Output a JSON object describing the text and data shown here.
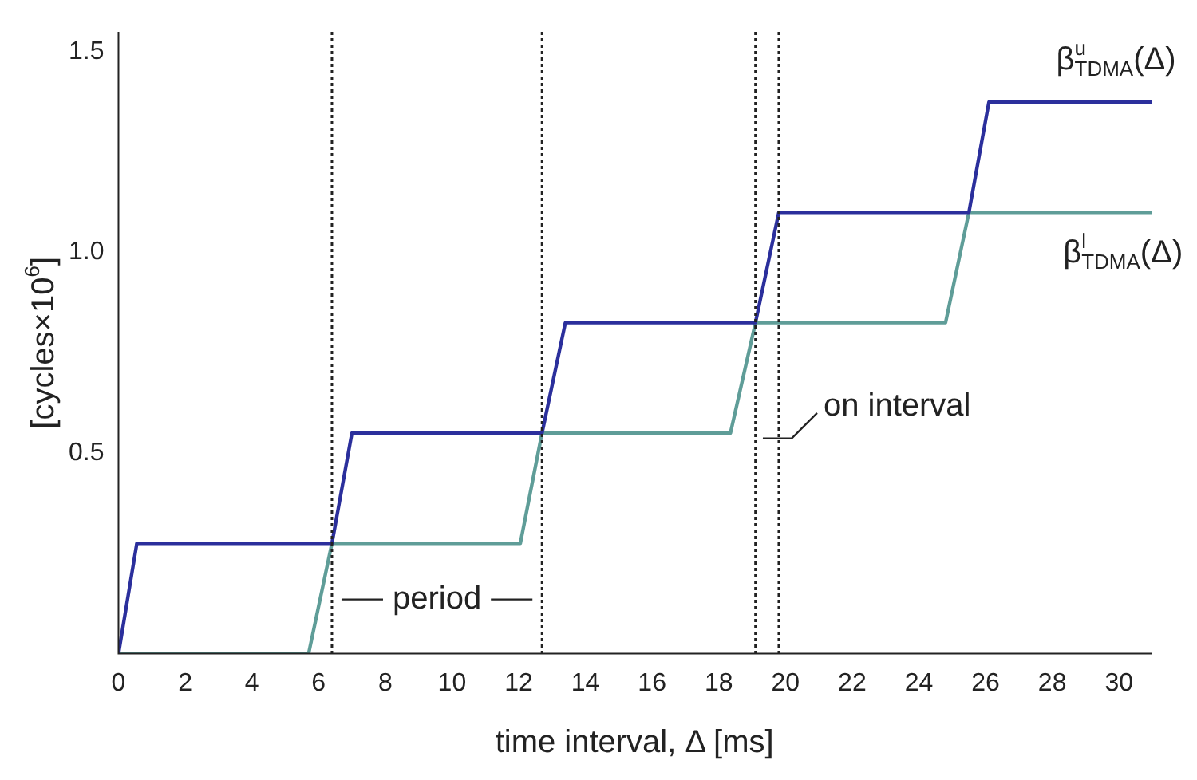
{
  "chart_data": {
    "type": "line",
    "xlabel": "time interval, Δ [ms]",
    "ylabel": "[cycles×10$^{6}$]",
    "xlim": [
      0,
      31
    ],
    "xticks": [
      0,
      2,
      4,
      6,
      8,
      10,
      12,
      14,
      16,
      18,
      20,
      22,
      24,
      26,
      28,
      30
    ],
    "ylim": [
      0,
      1.55
    ],
    "yticks": [
      {
        "value": 0.5,
        "label": "0.5"
      },
      {
        "value": 1,
        "label": "1.0"
      },
      {
        "value": 1.5,
        "label": "1.5"
      }
    ],
    "grid": false,
    "legend": false,
    "marker": "none",
    "line_style": "solid",
    "series": [
      {
        "name": "β$^{u}$$_{TDMA}$(Δ)",
        "color": "#2b2f9c",
        "x": [
          0,
          0.55,
          6.4,
          7.0,
          12.7,
          13.4,
          19.1,
          19.8,
          25.5,
          26.1,
          31
        ],
        "values": [
          0,
          0.275,
          0.275,
          0.55,
          0.55,
          0.825,
          0.825,
          1.1,
          1.1,
          1.375,
          1.375
        ]
      },
      {
        "name": "β$^{l}$$_{TDMA}$(Δ)",
        "color": "#5f9d98",
        "x": [
          0,
          5.7,
          6.4,
          12.05,
          12.7,
          18.35,
          19.1,
          24.8,
          25.5,
          31
        ],
        "values": [
          0,
          0,
          0.275,
          0.275,
          0.55,
          0.55,
          0.825,
          0.825,
          1.1,
          1.1
        ]
      }
    ],
    "ref_lines": [
      {
        "axis": "x",
        "value": 6.4,
        "line_style": "dotted",
        "color": "#222222"
      },
      {
        "axis": "x",
        "value": 12.7,
        "line_style": "dotted",
        "color": "#222222"
      },
      {
        "axis": "x",
        "value": 19.1,
        "line_style": "dotted",
        "color": "#222222"
      },
      {
        "axis": "x",
        "value": 19.8,
        "line_style": "dotted",
        "color": "#222222"
      }
    ],
    "annotations": [
      "period",
      "on interval"
    ]
  }
}
